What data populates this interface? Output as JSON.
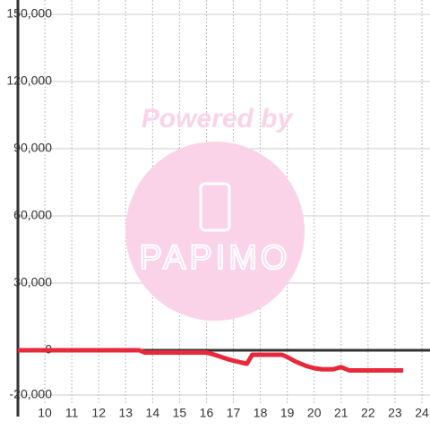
{
  "chart_data": {
    "type": "line",
    "watermark": "Powered by",
    "watermark_logo": "PAPIMO",
    "x": [
      9,
      13.5,
      13.7,
      16.0,
      16.3,
      16.8,
      17.3,
      17.5,
      17.7,
      18.8,
      19.0,
      19.3,
      19.7,
      20.0,
      20.3,
      20.7,
      21.0,
      21.3,
      23.3
    ],
    "series": [
      {
        "color": "#e8283c",
        "values": [
          0,
          0,
          -1000,
          -1000,
          -2000,
          -4000,
          -5500,
          -6000,
          -2000,
          -2000,
          -3000,
          -5000,
          -7000,
          -8000,
          -8500,
          -8500,
          -7500,
          -9000,
          -9000
        ]
      }
    ],
    "xlim": [
      9,
      24.3
    ],
    "ylim": [
      -20000,
      150000
    ],
    "xticks": [
      10,
      11,
      12,
      13,
      14,
      15,
      16,
      17,
      18,
      19,
      20,
      21,
      22,
      23,
      24
    ],
    "yticks": [
      {
        "value": -20000,
        "label": "-20,000"
      },
      0,
      {
        "value": 30000,
        "label": "30,000"
      },
      {
        "value": 60000,
        "label": "60,000"
      },
      {
        "value": 90000,
        "label": "90,000"
      },
      {
        "value": 120000,
        "label": "120,000"
      },
      {
        "value": 150000,
        "label": "150,000"
      }
    ],
    "grid": true
  }
}
